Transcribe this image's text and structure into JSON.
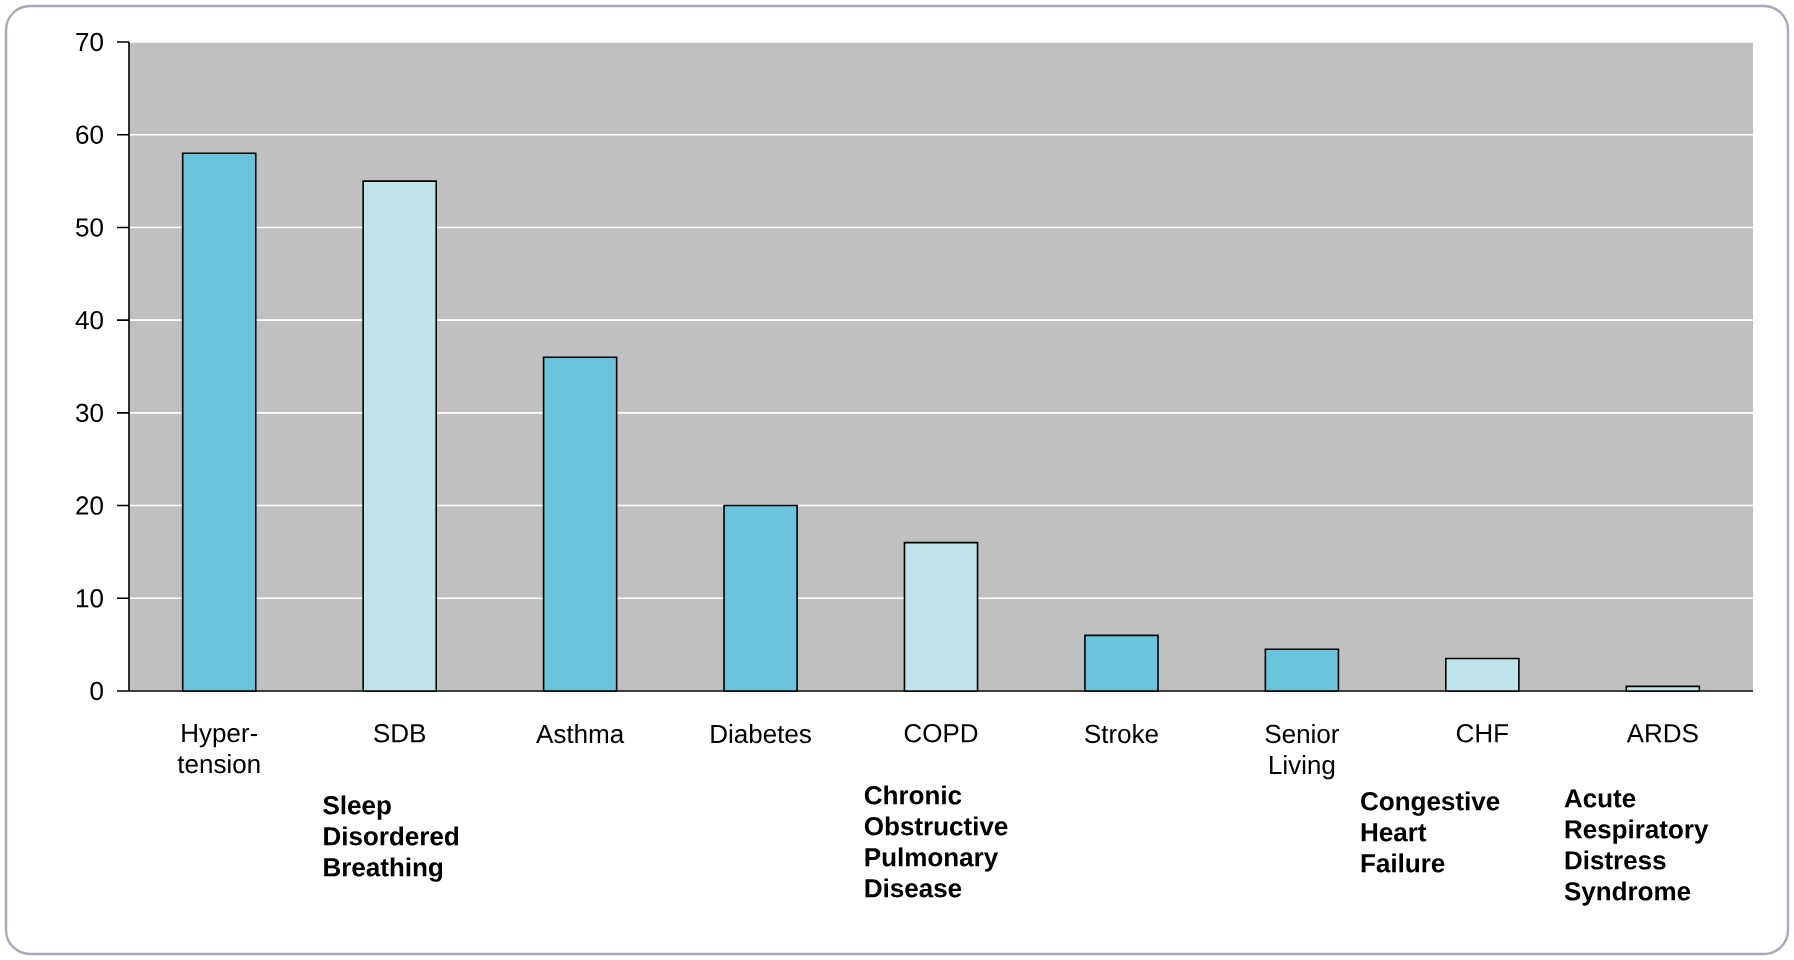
{
  "chart_data": {
    "type": "bar",
    "categories": [
      "Hyper-tension",
      "SDB",
      "Asthma",
      "Diabetes",
      "COPD",
      "Stroke",
      "Senior Living",
      "CHF",
      "ARDS"
    ],
    "values": [
      58,
      55,
      36,
      20,
      16,
      6,
      4.5,
      3.5,
      0.5
    ],
    "colors": [
      "#6ac4dc",
      "#c0e4ec",
      "#6ac4dc",
      "#6ac4dc",
      "#c0e4ec",
      "#6ac4dc",
      "#6ac4dc",
      "#c0e4ec",
      "#c0e4ec"
    ],
    "ylim": [
      0,
      70
    ],
    "yticks": [
      0,
      10,
      20,
      30,
      40,
      50,
      60,
      70
    ],
    "grid": "y",
    "annotations": [
      "Sleep Disordered Breathing",
      "Chronic Obstructive Pulmonary Disease",
      "Congestive Heart Failure",
      "Acute Respiratory Distress Syndrome"
    ]
  }
}
